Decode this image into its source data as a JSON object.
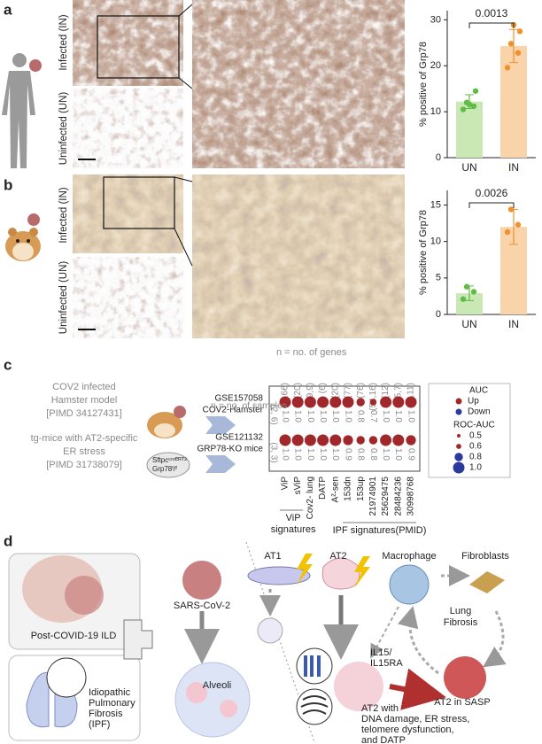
{
  "panel_labels": [
    "a",
    "b",
    "c",
    "d"
  ],
  "panel_a": {
    "row_labels": [
      "Infected (IN)",
      "Uninfected (UN)"
    ]
  },
  "panel_b": {
    "row_labels": [
      "Infected (IN)",
      "Uninfected (UN)"
    ]
  },
  "chart_data": [
    {
      "type": "bar",
      "ylabel": "% positive of Grp78",
      "categories": [
        "UN",
        "IN"
      ],
      "values": [
        12.2,
        24.3
      ],
      "errors": [
        1.5,
        3.6
      ],
      "points": [
        [
          10.5,
          11.2,
          12,
          14.5,
          11.6
        ],
        [
          19.6,
          22.8,
          24.8,
          27.5,
          28.9
        ]
      ],
      "colors": [
        "#c9e8b4",
        "#f9d3aa"
      ],
      "point_colors": [
        "#62bb46",
        "#f0912e"
      ],
      "annotation": "0.0013",
      "ylim": [
        0,
        32
      ],
      "yticks": [
        0,
        10,
        20,
        30
      ]
    },
    {
      "type": "bar",
      "ylabel": "% positive of Grp78",
      "categories": [
        "UN",
        "IN"
      ],
      "values": [
        2.9,
        12
      ],
      "errors": [
        1,
        2.4
      ],
      "points": [
        [
          2.1,
          3.1,
          3.8
        ],
        [
          11.3,
          12.3,
          14.4
        ]
      ],
      "colors": [
        "#c9e8b4",
        "#f9d3aa"
      ],
      "point_colors": [
        "#62bb46",
        "#f0912e"
      ],
      "annotation": "0.0026",
      "ylim": [
        0,
        17
      ],
      "yticks": [
        0,
        5,
        10,
        15
      ]
    },
    {
      "type": "dot",
      "title": "n = no. of genes",
      "columns": [
        "ViP",
        "sViP",
        "Cov2- lung",
        "DATP",
        "A²-sen",
        "153dn",
        "153up",
        "21974901",
        "25629475",
        "28484236",
        "30998768"
      ],
      "column_colors": [
        "#8a8a8a",
        "#8a8a8a",
        "#2b3a9c",
        "#2b3a9c",
        "#2b3a9c",
        "#8a8a8a",
        "#8a8a8a",
        "#8a8a8a",
        "#8a8a8a",
        "#8a8a8a",
        "#8a8a8a"
      ],
      "column_counts": [
        "(166)",
        "(20)",
        "(59,9)",
        "(6)",
        "(20)",
        "(77)",
        "(76)",
        "(54,16)",
        "(12)",
        "(15,7)",
        "(4,11)"
      ],
      "color": "#a0282a",
      "series": [
        {
          "name_lines": [
            "GSE157058",
            "COV2-Hamster"
          ],
          "counts": "(2, 6)",
          "values": [
            1,
            1,
            1,
            1,
            1,
            1,
            0.8,
            0.7,
            1,
            1,
            1
          ],
          "value_labels": [
            "1.0",
            "1.0",
            "1.0",
            "1.0",
            "1.0",
            "1.0",
            "0.8",
            "0.7",
            "1.0",
            "1.0",
            "1.0"
          ]
        },
        {
          "name_lines": [
            "GSE121132",
            "GRP78-KO mice"
          ],
          "counts": "(3, 3)",
          "values": [
            1,
            1,
            1,
            1,
            1,
            0.9,
            0.8,
            0.8,
            1,
            1,
            0.9
          ],
          "value_labels": [
            "1.0",
            "1.0",
            "1.0",
            "1.0",
            "1.0",
            "0.9",
            "0.8",
            "0.8",
            "1.0",
            "1.0",
            "0.9"
          ]
        }
      ],
      "groups": [
        {
          "lines": [
            "ViP",
            "signatures"
          ],
          "color": "#a0282a",
          "columns": [
            0,
            1
          ]
        },
        {
          "lines": [
            "IPF signatures(PMID)"
          ],
          "color": "#2b3a9c",
          "columns": [
            5,
            10
          ]
        }
      ],
      "legend_title": "AUC",
      "legend_entries": [
        {
          "label": "Up",
          "color": "#a0282a"
        },
        {
          "label": "Down",
          "color": "#2b3a9c"
        }
      ],
      "size_title": "ROC-AUC",
      "size_ticks": [
        0.5,
        0.6,
        0.8,
        {
          "value": 1,
          "label": "1.0"
        }
      ]
    }
  ],
  "panel_c": {
    "samples_note": "n = no. of samples",
    "model_1": [
      "COV2 infected",
      "Hamster model",
      "[PIMD 34127431]"
    ],
    "model_2": [
      "tg-mice with AT2-specific",
      "ER stress",
      "[PIMD 31738079]"
    ],
    "mouse_tags": [
      "Sftpcᶜʳᵉᴱᴿᵀ²",
      "Grp78ᶠ/ᶠ"
    ]
  },
  "panel_d": {
    "ild": "Post-COVID-19 ILD",
    "ipf": [
      "Idiopathic",
      "Pulmonary",
      "Fibrosis",
      "(IPF)"
    ],
    "virus": "SARS-CoV-2",
    "alveoli": "Alveoli",
    "at1": "AT1",
    "at2": "AT2",
    "macrophage": "Macrophage",
    "fibroblasts": "Fibroblasts",
    "fibrosis": [
      "Lung",
      "Fibrosis"
    ],
    "il15": [
      "IL15/",
      "IL15RA"
    ],
    "sasp": "AT2 in SASP",
    "at2_state": [
      "AT2 with",
      "DNA damage, ER stress,",
      "telomere dysfunction,",
      "and DATP"
    ]
  }
}
